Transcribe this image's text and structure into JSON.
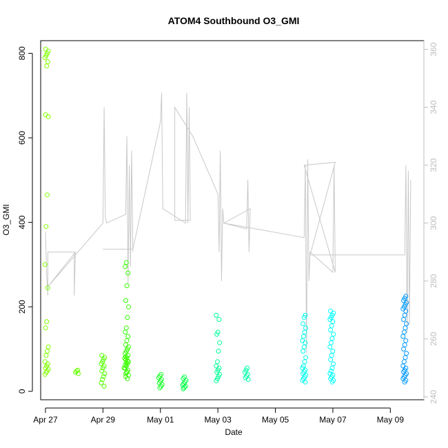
{
  "chart_data": {
    "type": "scatter",
    "title": "ATOM4 Southbound O3_GMI",
    "xlabel": "Date",
    "ylabel": "O3_GMI",
    "x_axis": {
      "type": "date",
      "range": [
        "2017-04-26T20:00",
        "2017-05-10T04:00"
      ],
      "ticks": [
        {
          "value": "2017-04-27",
          "label": "Apr 27"
        },
        {
          "value": "2017-04-29",
          "label": "Apr 29"
        },
        {
          "value": "2017-05-01",
          "label": "May 01"
        },
        {
          "value": "2017-05-03",
          "label": "May 03"
        },
        {
          "value": "2017-05-05",
          "label": "May 05"
        },
        {
          "value": "2017-05-07",
          "label": "May 07"
        },
        {
          "value": "2017-05-09",
          "label": "May 09"
        }
      ]
    },
    "y_left": {
      "range": [
        -20,
        830
      ],
      "ticks": [
        {
          "value": 0,
          "label": "0"
        },
        {
          "value": 200,
          "label": "200"
        },
        {
          "value": 400,
          "label": "400"
        },
        {
          "value": 600,
          "label": "600"
        },
        {
          "value": 800,
          "label": "800"
        }
      ]
    },
    "y_right": {
      "range": [
        239,
        363
      ],
      "color": "#bdbdbd",
      "ticks": [
        {
          "value": 240,
          "label": "240"
        },
        {
          "value": 260,
          "label": "260"
        },
        {
          "value": 280,
          "label": "280"
        },
        {
          "value": 300,
          "label": "300"
        },
        {
          "value": 320,
          "label": "320"
        },
        {
          "value": 340,
          "label": "340"
        },
        {
          "value": 360,
          "label": "360"
        }
      ]
    },
    "grid": false,
    "points": [
      {
        "t": "2017-04-27T01:00",
        "color": "#80ff00",
        "y": [
          40,
          45,
          48,
          52,
          55,
          60,
          65,
          70,
          85,
          95,
          105,
          150,
          165,
          245,
          300,
          390,
          465,
          650,
          655,
          770,
          780,
          790,
          795,
          800,
          805,
          810
        ]
      },
      {
        "t": "2017-04-28T02:00",
        "color": "#66ff00",
        "y": [
          42,
          45,
          48,
          50
        ]
      },
      {
        "t": "2017-04-29T00:00",
        "color": "#55ff00",
        "y": [
          12,
          20,
          28,
          35,
          42,
          48,
          55,
          60,
          65,
          70,
          75,
          80,
          85
        ]
      },
      {
        "t": "2017-04-29T20:00",
        "color": "#33ff00",
        "y": [
          30,
          38,
          42,
          46,
          50,
          55,
          60,
          65,
          70,
          75,
          80,
          85,
          90,
          95,
          100,
          105,
          110,
          120,
          130,
          140,
          150,
          175,
          200,
          215,
          250,
          280,
          295,
          305
        ]
      },
      {
        "t": "2017-04-29T19:00",
        "color": "#3cff00",
        "y": [
          35,
          45,
          55,
          62,
          68,
          72,
          78,
          82
        ]
      },
      {
        "t": "2017-05-01T00:00",
        "color": "#11ff22",
        "y": [
          8,
          12,
          16,
          20,
          24,
          28,
          32,
          36,
          40
        ]
      },
      {
        "t": "2017-05-01T20:00",
        "color": "#00ff44",
        "y": [
          6,
          9,
          12,
          15,
          18,
          22,
          26,
          30,
          34
        ]
      },
      {
        "t": "2017-05-03T00:00",
        "color": "#00ff99",
        "y": [
          25,
          30,
          35,
          40,
          45,
          50,
          55,
          60,
          70,
          95,
          115,
          135,
          140,
          170,
          180
        ]
      },
      {
        "t": "2017-05-04T00:00",
        "color": "#00ffaa",
        "y": [
          28,
          32,
          36,
          40,
          45,
          50,
          55
        ]
      },
      {
        "t": "2017-05-06T00:00",
        "color": "#00ffee",
        "y": [
          22,
          26,
          30,
          34,
          38,
          42,
          46,
          50,
          55,
          60,
          70,
          80,
          95,
          105,
          115,
          120,
          130,
          140,
          150,
          160,
          175,
          180
        ]
      },
      {
        "t": "2017-05-06T23:00",
        "color": "#00ffff",
        "y": [
          22,
          26,
          30,
          34,
          38,
          42,
          48,
          55,
          65,
          75,
          85,
          95,
          105,
          115,
          125,
          135,
          145,
          155,
          165,
          170,
          175,
          180,
          185,
          190
        ]
      },
      {
        "t": "2017-05-09T12:00",
        "color": "#0099ff",
        "y": [
          22,
          26,
          30,
          34,
          38,
          42,
          46,
          50,
          55,
          60,
          70,
          80,
          90,
          100,
          110,
          120,
          130,
          140,
          150,
          160,
          170,
          180,
          190,
          195,
          200,
          205,
          210,
          215,
          220,
          225
        ]
      }
    ],
    "right_series_line": {
      "color": "#c8c8c8",
      "points": [
        [
          "2017-04-27T00:00",
          297
        ],
        [
          "2017-04-27T01:00",
          282
        ],
        [
          "2017-04-27T02:00",
          275
        ],
        [
          "2017-04-27T02:00",
          290
        ],
        [
          "2017-04-28T00:00",
          290
        ],
        [
          "2017-04-28T00:00",
          275
        ],
        [
          "2017-04-28T01:00",
          290
        ],
        [
          "2017-04-27T02:00",
          278
        ],
        [
          "2017-04-29T00:00",
          300
        ],
        [
          "2017-04-29T01:00",
          340
        ],
        [
          "2017-04-29T02:00",
          302
        ],
        [
          "2017-04-29T03:00",
          300
        ],
        [
          "2017-04-29T19:00",
          303
        ],
        [
          "2017-04-29T20:00",
          330
        ],
        [
          "2017-04-29T21:00",
          279
        ],
        [
          "2017-04-29T22:00",
          320
        ],
        [
          "2017-04-29T23:00",
          285
        ],
        [
          "2017-04-30T00:00",
          325
        ],
        [
          "2017-04-30T01:00",
          290
        ],
        [
          "2017-04-30T01:00",
          291
        ],
        [
          "2017-04-29T00:00",
          291
        ],
        [
          "2017-04-30T01:00",
          291
        ],
        [
          "2017-05-01T00:00",
          335
        ],
        [
          "2017-05-01T01:00",
          345
        ],
        [
          "2017-05-01T02:00",
          305
        ],
        [
          "2017-05-01T21:00",
          300
        ],
        [
          "2017-05-01T22:00",
          345
        ],
        [
          "2017-05-01T23:00",
          300
        ],
        [
          "2017-05-02T00:00",
          340
        ],
        [
          "2017-05-02T01:00",
          301
        ],
        [
          "2017-05-01T12:00",
          301
        ],
        [
          "2017-05-01T12:00",
          340
        ],
        [
          "2017-05-02T03:00",
          330
        ],
        [
          "2017-05-03T00:00",
          310
        ],
        [
          "2017-05-03T01:00",
          290
        ],
        [
          "2017-05-03T02:00",
          325
        ],
        [
          "2017-05-03T03:00",
          280
        ],
        [
          "2017-05-03T04:00",
          305
        ],
        [
          "2017-05-03T05:00",
          300
        ],
        [
          "2017-05-04T00:00",
          298
        ],
        [
          "2017-05-04T01:00",
          315
        ],
        [
          "2017-05-04T02:00",
          290
        ],
        [
          "2017-05-04T03:00",
          305
        ],
        [
          "2017-05-03T05:00",
          300
        ],
        [
          "2017-05-06T00:00",
          295
        ],
        [
          "2017-05-06T01:00",
          320
        ],
        [
          "2017-05-06T02:00",
          255
        ],
        [
          "2017-05-06T03:00",
          322
        ],
        [
          "2017-05-06T04:00",
          280
        ],
        [
          "2017-05-06T05:00",
          290
        ],
        [
          "2017-05-07T00:00",
          283
        ],
        [
          "2017-05-07T01:00",
          320
        ],
        [
          "2017-05-07T02:00",
          283
        ],
        [
          "2017-05-06T00:00",
          320
        ],
        [
          "2017-05-07T02:00",
          321
        ],
        [
          "2017-05-06T05:00",
          289
        ],
        [
          "2017-05-09T12:00",
          289
        ],
        [
          "2017-05-09T13:00",
          320
        ],
        [
          "2017-05-09T14:00",
          262
        ],
        [
          "2017-05-09T15:00",
          318
        ],
        [
          "2017-05-09T16:00",
          265
        ],
        [
          "2017-05-09T17:00",
          315
        ]
      ]
    }
  }
}
